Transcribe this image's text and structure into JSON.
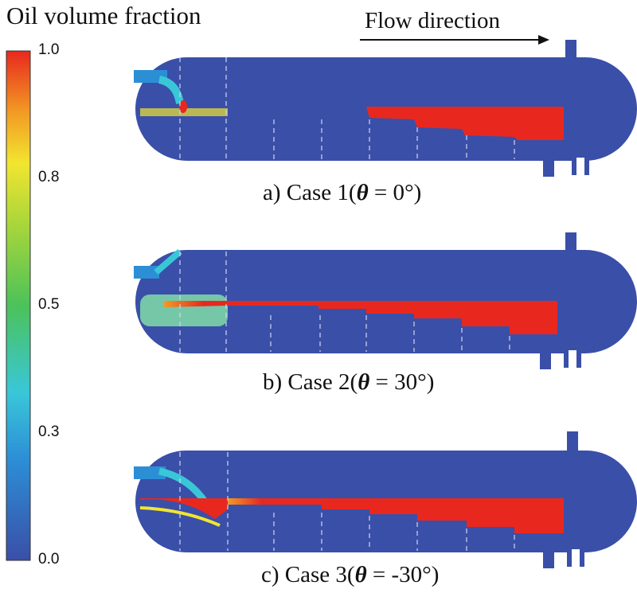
{
  "colorbar": {
    "title": "Oil volume fraction",
    "ticks": [
      {
        "label": "1.0",
        "value": 1.0
      },
      {
        "label": "0.8",
        "value": 0.8
      },
      {
        "label": "0.5",
        "value": 0.5
      },
      {
        "label": "0.3",
        "value": 0.3
      },
      {
        "label": "0.0",
        "value": 0.0
      }
    ],
    "colors": [
      "#3a4fa8",
      "#2c8fd6",
      "#39c7d8",
      "#4cc25a",
      "#a9d63a",
      "#f2e530",
      "#f29a24",
      "#e8281e"
    ]
  },
  "flow_direction": "Flow direction",
  "cases": [
    {
      "prefix": "a) Case 1(",
      "symbol": "θ",
      "suffix": " = 0°)"
    },
    {
      "prefix": "b) Case 2(",
      "symbol": "θ",
      "suffix": " = 30°)"
    },
    {
      "prefix": "c) Case 3(",
      "symbol": "θ",
      "suffix": " = -30°)"
    }
  ]
}
